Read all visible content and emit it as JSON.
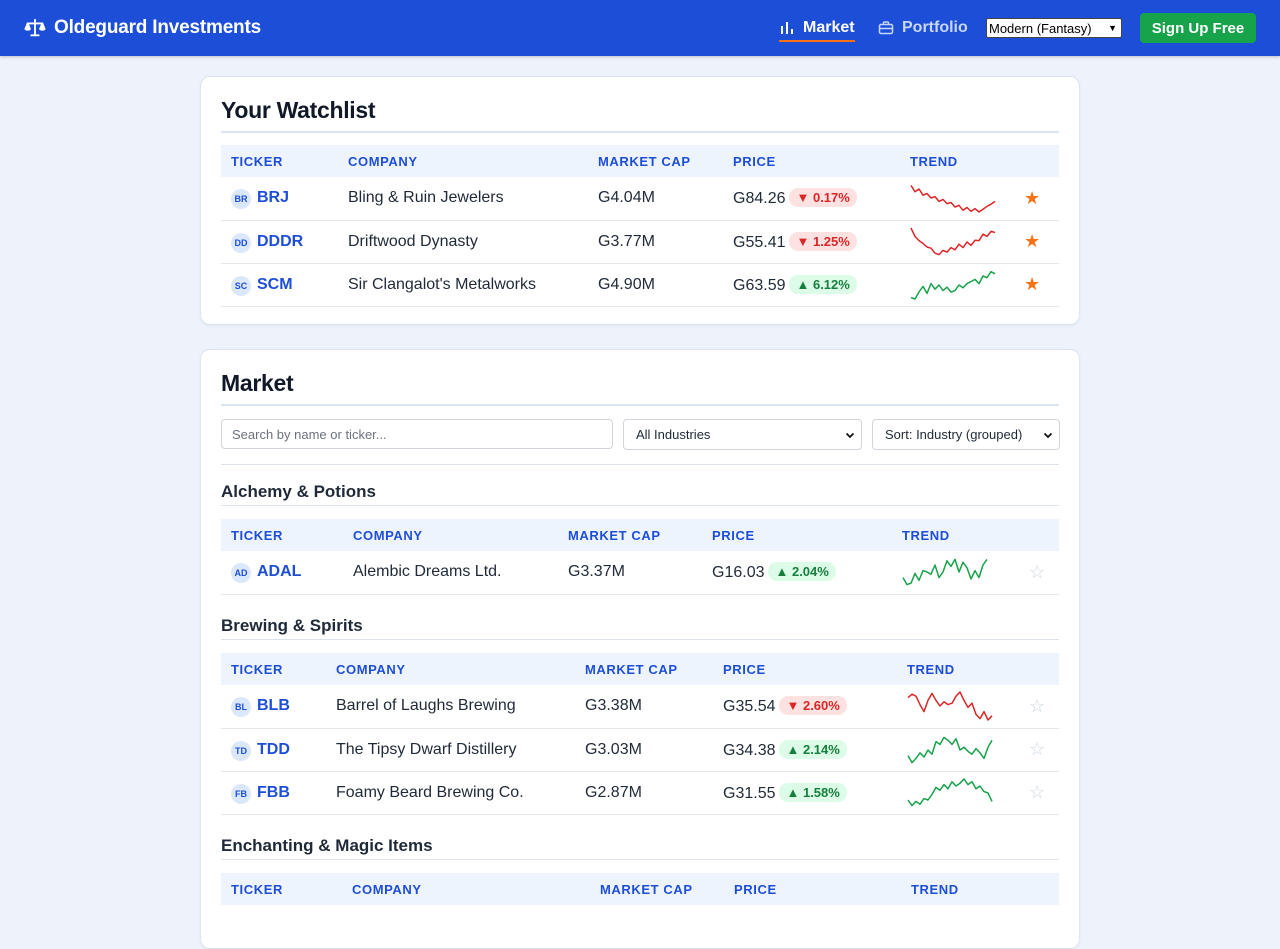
{
  "header": {
    "brand": "Oldeguard Investments",
    "nav": [
      {
        "label": "Market",
        "icon": "bar-chart-icon",
        "active": true
      },
      {
        "label": "Portfolio",
        "icon": "briefcase-icon",
        "active": false
      }
    ],
    "theme_select": "Modern (Fantasy)",
    "signup_label": "Sign Up Free"
  },
  "colors": {
    "header_bg": "#1d4ed8",
    "accent": "#1d4ed8",
    "up": "#16a34a",
    "down": "#dc2626",
    "star_on": "#f97316",
    "signup_bg": "#16a34a"
  },
  "watchlist": {
    "title": "Your Watchlist",
    "columns": [
      "TICKER",
      "COMPANY",
      "MARKET CAP",
      "PRICE",
      "TREND"
    ],
    "rows": [
      {
        "badge": "BR",
        "ticker": "BRJ",
        "company": "Bling & Ruin Jewelers",
        "cap": "G4.04M",
        "price": "G84.26",
        "change": "0.17%",
        "dir": "down",
        "starred": true,
        "trend": [
          0.95,
          0.72,
          0.82,
          0.6,
          0.66,
          0.5,
          0.55,
          0.38,
          0.45,
          0.3,
          0.34,
          0.18,
          0.24,
          0.06,
          0.16,
          0.02,
          0.12,
          0.0,
          0.1,
          0.2,
          0.28,
          0.38
        ]
      },
      {
        "badge": "DD",
        "ticker": "DDDR",
        "company": "Driftwood Dynasty",
        "cap": "G3.77M",
        "price": "G55.41",
        "change": "1.25%",
        "dir": "down",
        "starred": true,
        "trend": [
          1.0,
          0.7,
          0.55,
          0.45,
          0.32,
          0.28,
          0.1,
          0.05,
          0.2,
          0.14,
          0.3,
          0.22,
          0.42,
          0.3,
          0.5,
          0.38,
          0.56,
          0.55,
          0.78,
          0.7,
          0.88,
          0.84
        ]
      },
      {
        "badge": "SC",
        "ticker": "SCM",
        "company": "Sir Clangalot's Metalworks",
        "cap": "G4.90M",
        "price": "G63.59",
        "change": "6.12%",
        "dir": "up",
        "starred": true,
        "trend": [
          0.05,
          0.0,
          0.25,
          0.45,
          0.2,
          0.55,
          0.35,
          0.5,
          0.3,
          0.42,
          0.25,
          0.3,
          0.5,
          0.4,
          0.55,
          0.62,
          0.7,
          0.55,
          0.82,
          0.76,
          0.98,
          0.9
        ]
      }
    ]
  },
  "market": {
    "title": "Market",
    "search_placeholder": "Search by name or ticker...",
    "industry_select": "All Industries",
    "sort_select": "Sort: Industry (grouped)",
    "groups": [
      {
        "name": "Alchemy & Potions",
        "columns": [
          "TICKER",
          "COMPANY",
          "MARKET CAP",
          "PRICE",
          "TREND"
        ],
        "rows": [
          {
            "badge": "AD",
            "ticker": "ADAL",
            "company": "Alembic Dreams Ltd.",
            "cap": "G3.37M",
            "price": "G16.03",
            "change": "2.04%",
            "dir": "up",
            "starred": false,
            "trend": [
              0.3,
              0.05,
              0.1,
              0.45,
              0.2,
              0.55,
              0.5,
              0.42,
              0.75,
              0.3,
              0.5,
              0.9,
              0.7,
              0.95,
              0.5,
              0.85,
              0.65,
              0.25,
              0.55,
              0.3,
              0.75,
              0.95
            ]
          }
        ]
      },
      {
        "name": "Brewing & Spirits",
        "columns": [
          "TICKER",
          "COMPANY",
          "MARKET CAP",
          "PRICE",
          "TREND"
        ],
        "rows": [
          {
            "badge": "BL",
            "ticker": "BLB",
            "company": "Barrel of Laughs Brewing",
            "cap": "G3.38M",
            "price": "G35.54",
            "change": "2.60%",
            "dir": "down",
            "starred": false,
            "trend": [
              0.8,
              0.92,
              0.85,
              0.55,
              0.3,
              0.7,
              0.95,
              0.7,
              0.5,
              0.65,
              0.55,
              0.6,
              0.85,
              1.0,
              0.7,
              0.45,
              0.6,
              0.2,
              0.05,
              0.3,
              0.0,
              0.15
            ]
          },
          {
            "badge": "TD",
            "ticker": "TDD",
            "company": "The Tipsy Dwarf Distillery",
            "cap": "G3.03M",
            "price": "G34.38",
            "change": "2.14%",
            "dir": "up",
            "starred": false,
            "trend": [
              0.3,
              0.05,
              0.2,
              0.4,
              0.25,
              0.5,
              0.35,
              0.8,
              0.7,
              0.95,
              0.85,
              0.7,
              0.9,
              0.5,
              0.6,
              0.45,
              0.35,
              0.55,
              0.4,
              0.2,
              0.6,
              0.85
            ]
          },
          {
            "badge": "FB",
            "ticker": "FBB",
            "company": "Foamy Beard Brewing Co.",
            "cap": "G2.87M",
            "price": "G31.55",
            "change": "1.58%",
            "dir": "up",
            "starred": false,
            "trend": [
              0.25,
              0.05,
              0.2,
              0.1,
              0.3,
              0.25,
              0.45,
              0.7,
              0.6,
              0.8,
              0.65,
              0.9,
              0.75,
              0.85,
              1.0,
              0.8,
              0.9,
              0.65,
              0.75,
              0.55,
              0.5,
              0.2
            ]
          }
        ]
      },
      {
        "name": "Enchanting & Magic Items",
        "columns": [
          "TICKER",
          "COMPANY",
          "MARKET CAP",
          "PRICE",
          "TREND"
        ],
        "rows": []
      }
    ]
  }
}
